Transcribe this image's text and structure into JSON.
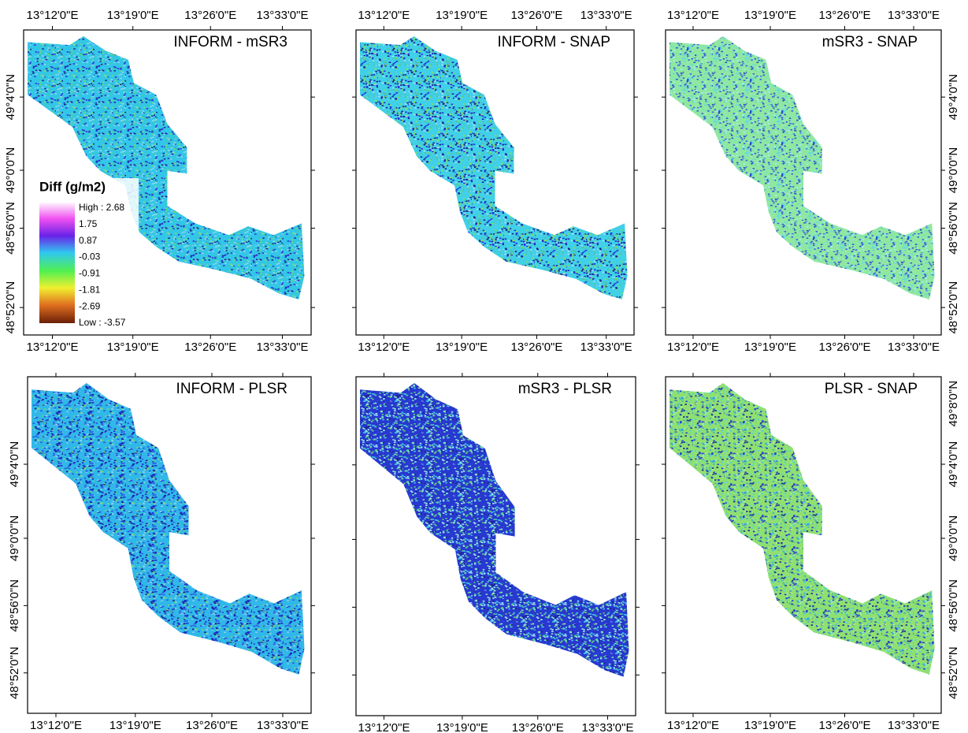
{
  "panels": [
    {
      "title": "INFORM - mSR3",
      "top_labels": [
        "13°12'0\"E",
        "13°19'0\"E",
        "13°26'0\"E",
        "13°33'0\"E"
      ],
      "bottom_labels": [
        "13°12'0\"E",
        "13°19'0\"E",
        "13°26'0\"E",
        "13°33'0\"E"
      ],
      "left_labels": [
        "49°4'0\"N",
        "49°0'0\"N",
        "48°56'0\"N",
        "48°52'0\"N"
      ],
      "right_labels": []
    },
    {
      "title": "INFORM - SNAP",
      "top_labels": [
        "13°12'0\"E",
        "13°19'0\"E",
        "13°26'0\"E",
        "13°33'0\"E"
      ],
      "bottom_labels": [
        "13°12'0\"E",
        "13°19'0\"E",
        "13°26'0\"E",
        "13°33'0\"E"
      ],
      "left_labels": [],
      "right_labels": []
    },
    {
      "title": "mSR3 - SNAP",
      "top_labels": [
        "13°12'0\"E",
        "13°19'0\"E",
        "13°26'0\"E",
        "13°33'0\"E"
      ],
      "bottom_labels": [
        "13°12'0\"E",
        "13°19'0\"E",
        "13°26'0\"E",
        "13°33'0\"E"
      ],
      "left_labels": [],
      "right_labels": [
        "49°4'0\"N",
        "49°0'0\"N",
        "48°56'0\"N",
        "48°52'0\"N"
      ]
    },
    {
      "title": "INFORM - PLSR",
      "top_labels": [],
      "bottom_labels": [
        "13°12'0\"E",
        "13°19'0\"E",
        "13°26'0\"E",
        "13°33'0\"E"
      ],
      "left_labels": [
        "49°4'0\"N",
        "49°0'0\"N",
        "48°56'0\"N",
        "48°52'0\"N"
      ],
      "right_labels": []
    },
    {
      "title": "mSR3 - PLSR",
      "top_labels": [],
      "bottom_labels": [
        "13°12'0\"E",
        "13°19'0\"E",
        "13°26'0\"E",
        "13°33'0\"E"
      ],
      "left_labels": [],
      "right_labels": []
    },
    {
      "title": "PLSR - SNAP",
      "top_labels": [],
      "bottom_labels": [
        "13°12'0\"E",
        "13°19'0\"E",
        "13°26'0\"E",
        "13°33'0\"E"
      ],
      "left_labels": [],
      "right_labels": [
        "49°8'0\"N",
        "49°4'0\"N",
        "49°0'0\"N",
        "48°56'0\"N",
        "48°52'0\"N"
      ]
    }
  ],
  "legend": {
    "title": "Diff (g/m2)",
    "labels": [
      "High : 2.68",
      "1.75",
      "0.87",
      "-0.03",
      "-0.91",
      "-1.81",
      "-2.69",
      "Low : -3.57"
    ]
  }
}
